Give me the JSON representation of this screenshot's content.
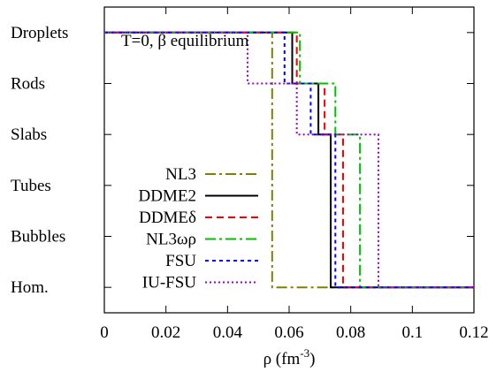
{
  "chart_data": {
    "type": "line",
    "title": "T=0, β equilibrium",
    "xlabel": "ρ (fm-3)",
    "xlabel_base": "ρ (fm",
    "xlabel_sup": "-3",
    "xlabel_close": ")",
    "xlim": [
      0,
      0.12
    ],
    "x_ticks": [
      0,
      0.02,
      0.04,
      0.06,
      0.08,
      0.1,
      0.12
    ],
    "x_tick_labels": [
      "0",
      "0.02",
      "0.04",
      "0.06",
      "0.08",
      "0.1",
      "0.12"
    ],
    "y_categories": [
      "Hom.",
      "Bubbles",
      "Tubes",
      "Slabs",
      "Rods",
      "Droplets"
    ],
    "ylim": [
      -0.5,
      5.5
    ],
    "legend_placement": "bottom-left",
    "series": [
      {
        "name": "NL3",
        "color": "#808000",
        "dash": "12,4,3,4",
        "steps": [
          [
            0,
            5
          ],
          [
            0.0545,
            5
          ],
          [
            0.0545,
            0
          ],
          [
            0.12,
            0
          ]
        ]
      },
      {
        "name": "DDME2",
        "color": "#000000",
        "dash": "",
        "steps": [
          [
            0,
            5
          ],
          [
            0.061,
            5
          ],
          [
            0.061,
            4
          ],
          [
            0.0695,
            4
          ],
          [
            0.0695,
            3
          ],
          [
            0.0735,
            3
          ],
          [
            0.0735,
            0
          ],
          [
            0.12,
            0
          ]
        ]
      },
      {
        "name": "DDMEδ",
        "color": "#ff0000",
        "dash": "8,5",
        "steps": [
          [
            0,
            5
          ],
          [
            0.0625,
            5
          ],
          [
            0.0625,
            4
          ],
          [
            0.0715,
            4
          ],
          [
            0.0715,
            3
          ],
          [
            0.0775,
            3
          ],
          [
            0.0775,
            0
          ],
          [
            0.12,
            0
          ]
        ]
      },
      {
        "name": "NL3ωρ",
        "color": "#00c000",
        "dash": "12,4,3,4",
        "steps": [
          [
            0,
            5
          ],
          [
            0.0635,
            5
          ],
          [
            0.0635,
            4
          ],
          [
            0.075,
            4
          ],
          [
            0.075,
            3
          ],
          [
            0.083,
            3
          ],
          [
            0.083,
            0
          ],
          [
            0.12,
            0
          ]
        ]
      },
      {
        "name": "FSU",
        "color": "#0000ff",
        "dash": "4,4",
        "steps": [
          [
            0,
            5
          ],
          [
            0.0585,
            5
          ],
          [
            0.0585,
            4
          ],
          [
            0.067,
            4
          ],
          [
            0.067,
            3
          ],
          [
            0.075,
            3
          ],
          [
            0.075,
            0
          ],
          [
            0.12,
            0
          ]
        ]
      },
      {
        "name": "IU-FSU",
        "color": "#9400d3",
        "dash": "2,3",
        "steps": [
          [
            0,
            5
          ],
          [
            0.0465,
            5
          ],
          [
            0.0465,
            4
          ],
          [
            0.0625,
            4
          ],
          [
            0.0625,
            3
          ],
          [
            0.089,
            3
          ],
          [
            0.089,
            0
          ],
          [
            0.12,
            0
          ]
        ]
      }
    ]
  }
}
